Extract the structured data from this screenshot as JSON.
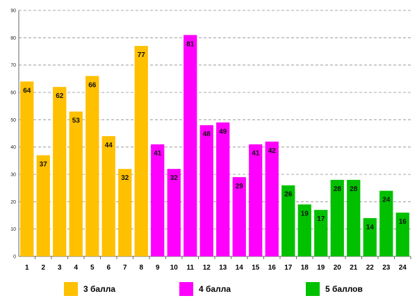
{
  "chart_data": {
    "type": "bar",
    "categories": [
      "1",
      "2",
      "3",
      "4",
      "5",
      "6",
      "7",
      "8",
      "9",
      "10",
      "11",
      "12",
      "13",
      "14",
      "15",
      "16",
      "17",
      "18",
      "19",
      "20",
      "21",
      "22",
      "23",
      "24"
    ],
    "values": [
      64,
      37,
      62,
      53,
      66,
      44,
      32,
      77,
      41,
      32,
      81,
      48,
      49,
      29,
      41,
      42,
      26,
      19,
      17,
      28,
      28,
      14,
      24,
      16
    ],
    "groups": [
      0,
      0,
      0,
      0,
      0,
      0,
      0,
      0,
      1,
      1,
      1,
      1,
      1,
      1,
      1,
      1,
      2,
      2,
      2,
      2,
      2,
      2,
      2,
      2
    ],
    "ylim": [
      0,
      90
    ],
    "yticks": [
      0,
      10,
      20,
      30,
      40,
      50,
      60,
      70,
      80,
      90
    ],
    "grid": true,
    "legend_position": "bottom"
  },
  "legend": [
    {
      "label": "3 балла",
      "color": "#FFC000"
    },
    {
      "label": "4 балла",
      "color": "#FF00FF"
    },
    {
      "label": "5 баллов",
      "color": "#00C000"
    }
  ]
}
